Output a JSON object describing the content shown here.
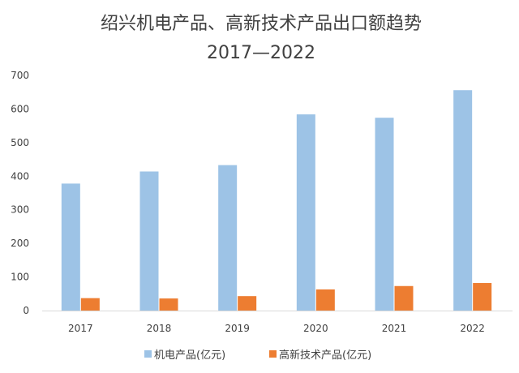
{
  "chart_data": {
    "type": "bar",
    "title": "绍兴机电产品、高新技术产品出口额趋势",
    "subtitle": "2017—2022",
    "categories": [
      "2017",
      "2018",
      "2019",
      "2020",
      "2021",
      "2022"
    ],
    "series": [
      {
        "name": "机电产品(亿元)",
        "values": [
          378,
          414,
          433,
          584,
          574,
          656
        ],
        "color": "#9dc3e6"
      },
      {
        "name": "高新技术产品(亿元)",
        "values": [
          37,
          36,
          43,
          63,
          73,
          82
        ],
        "color": "#ed7d31"
      }
    ],
    "yticks": [
      "0",
      "100",
      "200",
      "300",
      "400",
      "500",
      "600",
      "700"
    ],
    "ylim": [
      0,
      700
    ],
    "grid": false,
    "legend": "bottom",
    "axis_color": "#d9d9d9"
  }
}
